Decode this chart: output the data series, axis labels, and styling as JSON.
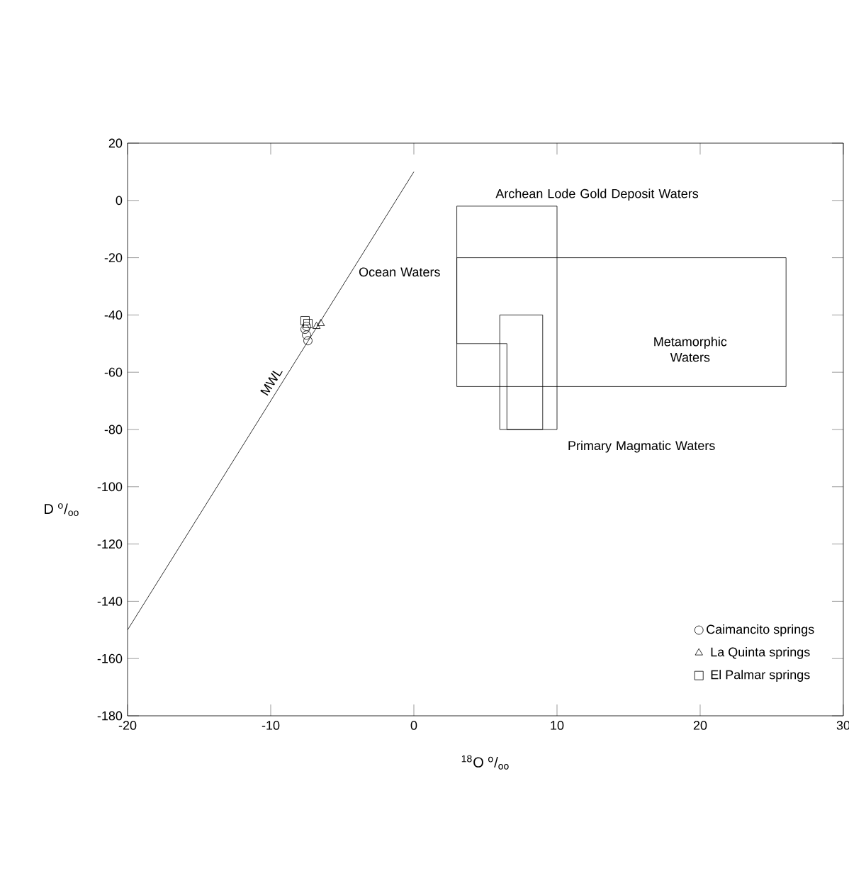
{
  "chart_data": {
    "type": "scatter",
    "xlabel": "$^{18}$O  $^{o}$/$_{oo}$",
    "ylabel": "D  $^{o}$/$_{oo}$",
    "xlim": [
      -20,
      30
    ],
    "xticks": [
      -20,
      -10,
      0,
      10,
      20,
      30
    ],
    "ylim": [
      -180,
      20
    ],
    "yticks": [
      -180,
      -160,
      -140,
      -120,
      -100,
      -80,
      -60,
      -40,
      -20,
      0,
      20
    ],
    "grid": false,
    "legend": "bottom right",
    "series": [
      {
        "name": "Caimancito springs",
        "marker": "circle",
        "color": "#000000",
        "x": [
          -7.5,
          -7.5,
          -7.4,
          -7.6
        ],
        "values": [
          -44,
          -47,
          -49,
          -45
        ]
      },
      {
        "name": "La Quinta springs",
        "marker": "triangle",
        "color": "#000000",
        "x": [
          -6.5,
          -6.8
        ],
        "values": [
          -43,
          -44
        ]
      },
      {
        "name": "El Palmar springs",
        "marker": "square",
        "color": "#000000",
        "x": [
          -7.6,
          -7.4
        ],
        "values": [
          -42,
          -43
        ]
      },
      {
        "type": "line",
        "marker": "none",
        "color": "#000000",
        "x": [
          -20,
          0
        ],
        "values": [
          -150,
          10
        ]
      },
      {
        "type": "line",
        "marker": "none",
        "color": "#000000",
        "x": [
          3,
          10
        ],
        "values": [
          -2,
          -2
        ]
      },
      {
        "type": "line",
        "marker": "none",
        "color": "#000000",
        "x": [
          10,
          10
        ],
        "values": [
          -2,
          -80
        ]
      },
      {
        "type": "line",
        "marker": "none",
        "color": "#000000",
        "x": [
          6.5,
          10
        ],
        "values": [
          -80,
          -80
        ]
      },
      {
        "type": "line",
        "marker": "none",
        "color": "#000000",
        "x": [
          6.5,
          6.5
        ],
        "values": [
          -50,
          -80
        ]
      },
      {
        "type": "line",
        "marker": "none",
        "color": "#000000",
        "x": [
          3,
          6.5
        ],
        "values": [
          -50,
          -50
        ]
      },
      {
        "type": "line",
        "marker": "none",
        "color": "#000000",
        "x": [
          3,
          3
        ],
        "values": [
          -2,
          -50
        ]
      },
      {
        "type": "line",
        "marker": "none",
        "color": "#000000",
        "x": [
          3,
          26
        ],
        "values": [
          -20,
          -20
        ]
      },
      {
        "type": "line",
        "marker": "none",
        "color": "#000000",
        "x": [
          26,
          26
        ],
        "values": [
          -20,
          -65
        ]
      },
      {
        "type": "line",
        "marker": "none",
        "color": "#000000",
        "x": [
          3,
          26
        ],
        "values": [
          -65,
          -65
        ]
      },
      {
        "type": "line",
        "marker": "none",
        "color": "#000000",
        "x": [
          3,
          3
        ],
        "values": [
          -20,
          -65
        ]
      },
      {
        "type": "line",
        "marker": "none",
        "color": "#000000",
        "x": [
          6,
          9
        ],
        "values": [
          -40,
          -40
        ]
      },
      {
        "type": "line",
        "marker": "none",
        "color": "#000000",
        "x": [
          9,
          9
        ],
        "values": [
          -40,
          -80
        ]
      },
      {
        "type": "line",
        "marker": "none",
        "color": "#000000",
        "x": [
          6,
          9
        ],
        "values": [
          -80,
          -80
        ]
      },
      {
        "type": "line",
        "marker": "none",
        "color": "#000000",
        "x": [
          6,
          6
        ],
        "values": [
          -40,
          -80
        ]
      }
    ],
    "annotations": [
      {
        "text": "MWL",
        "x": -9.4,
        "y": -65
      },
      "Ocean Waters",
      "Archean Lode Gold Deposit Waters",
      "Metamorphic Waters",
      "Primary Magmatic Waters"
    ]
  }
}
